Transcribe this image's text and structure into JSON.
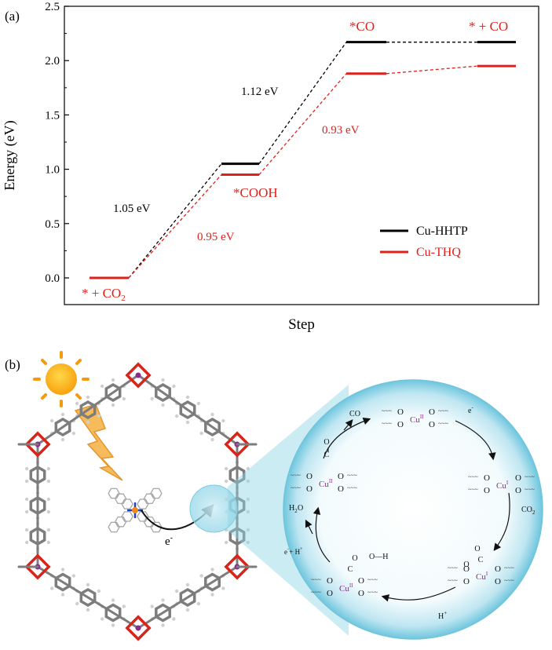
{
  "panel_a": {
    "label": "(a)",
    "chart_data": {
      "type": "line",
      "title": "",
      "xlabel": "Step",
      "ylabel": "Energy (eV)",
      "ylim": [
        0,
        2.5
      ],
      "yticks": [
        "0.0",
        "0.5",
        "1.0",
        "1.5",
        "2.0",
        "2.5"
      ],
      "steps": [
        "* + CO₂",
        "*COOH",
        "*CO",
        "* + CO"
      ],
      "series": [
        {
          "name": "Cu-HHTP",
          "color": "#000000",
          "values": [
            0.0,
            1.05,
            2.17,
            2.17
          ]
        },
        {
          "name": "Cu-THQ",
          "color": "#e0201b",
          "values": [
            0.0,
            0.95,
            1.88,
            1.95
          ]
        }
      ],
      "legend_position": "bottom-right",
      "grid": false,
      "annotations": [
        {
          "text": "1.05 eV",
          "color": "#000000"
        },
        {
          "text": "0.95 eV",
          "color": "#e0201b"
        },
        {
          "text": "1.12 eV",
          "color": "#000000"
        },
        {
          "text": "0.93 eV",
          "color": "#e0201b"
        }
      ],
      "state_labels": {
        "s0_main": "* + CO",
        "s0_sub": "2",
        "s1": "*COOH",
        "s2": "*CO",
        "s3": "* + CO"
      }
    }
  },
  "panel_b": {
    "label": "(b)",
    "electron_label": "e",
    "electron_sup": "-",
    "cycle": {
      "co_out": "CO",
      "e_minus": "e",
      "e_sup": "-",
      "co2_in": "CO",
      "co2_sub": "2",
      "h_plus": "H",
      "h_sup": "+",
      "h2o_out": "H",
      "h2o_sub": "2",
      "h2o_tail": "O",
      "eh_label": "e",
      "eh_mid": " + H",
      "eh_sup": "+",
      "metal": "Cu",
      "ox_II": "II",
      "ox_I": "I",
      "oxygen": "O",
      "carbon": "C",
      "oh_group": "O—H",
      "wave": "~~~"
    }
  }
}
